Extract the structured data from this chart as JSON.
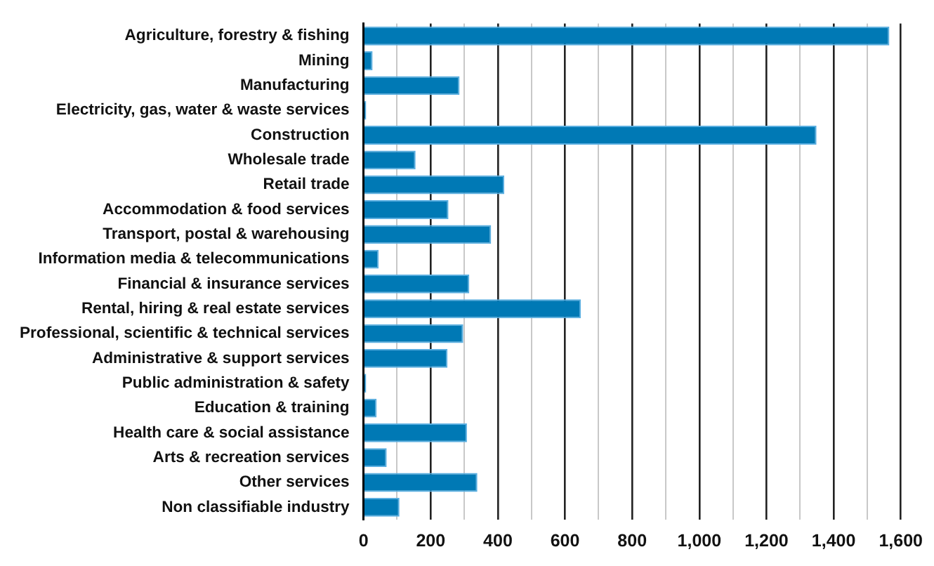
{
  "chart_data": {
    "type": "bar",
    "orientation": "horizontal",
    "categories": [
      "Agriculture, forestry & fishing",
      "Mining",
      "Manufacturing",
      "Electricity, gas, water & waste services",
      "Construction",
      "Wholesale trade",
      "Retail trade",
      "Accommodation & food services",
      "Transport, postal & warehousing",
      "Information media & telecommunications",
      "Financial & insurance services",
      "Rental, hiring & real estate services",
      "Professional, scientific & technical services",
      "Administrative & support services",
      "Public administration & safety",
      "Education & training",
      "Health care & social assistance",
      "Arts & recreation services",
      "Other services",
      "Non classifiable industry"
    ],
    "values": [
      1566,
      27,
      286,
      8,
      1349,
      155,
      419,
      253,
      380,
      45,
      315,
      647,
      297,
      250,
      8,
      39,
      308,
      69,
      339,
      107
    ],
    "color": "#0079b5",
    "xlim": [
      0,
      1600
    ],
    "xticks": [
      0,
      {
        "value": 100,
        "label": null
      },
      200,
      {
        "value": 300,
        "label": null
      },
      400,
      {
        "value": 500,
        "label": null
      },
      600,
      {
        "value": 700,
        "label": null
      },
      800,
      {
        "value": 900,
        "label": null
      },
      {
        "value": 1000,
        "label": "1,000"
      },
      {
        "value": 1100,
        "label": null
      },
      {
        "value": 1200,
        "label": "1,200"
      },
      {
        "value": 1300,
        "label": null
      },
      {
        "value": 1400,
        "label": "1,400"
      },
      {
        "value": 1500,
        "label": null
      },
      {
        "value": 1600,
        "label": "1,600"
      }
    ],
    "grid": "x",
    "legend": false
  }
}
